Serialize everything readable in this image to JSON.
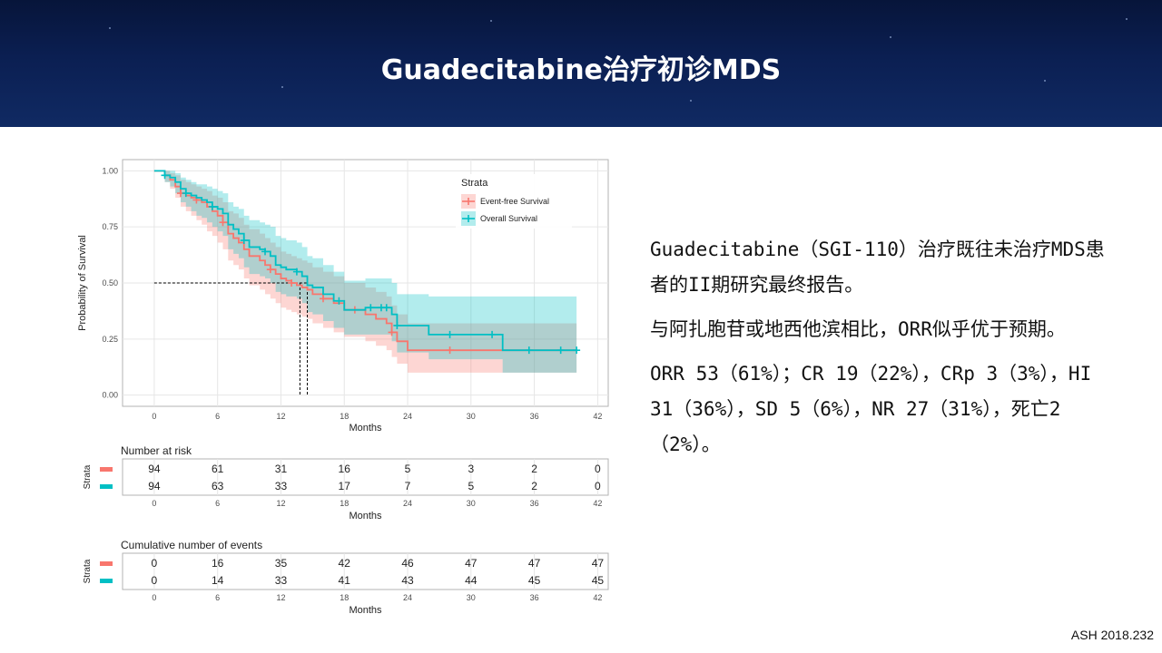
{
  "header": {
    "title": "Guadecitabine治疗初诊MDS"
  },
  "text": {
    "para1": "Guadecitabine（SGI-110）治疗既往未治疗MDS患者的II期研究最终报告。",
    "para2": "与阿扎胞苷或地西他滨相比，ORR似乎优于预期。",
    "para3": "ORR 53（61%）；CR 19（22%），CRp 3（3%），HI 31（36%），SD 5（6%），NR 27（31%），死亡2（2%）。"
  },
  "source": "ASH 2018.232",
  "colors": {
    "efs": "#f8766d",
    "os": "#00bfc4"
  },
  "chart_data": {
    "type": "line",
    "title": "",
    "xlabel": "Months",
    "ylabel": "Probability of Survival",
    "xlim": [
      -3,
      43
    ],
    "ylim": [
      -0.05,
      1.05
    ],
    "xticks": [
      0,
      6,
      12,
      18,
      24,
      30,
      36,
      42
    ],
    "yticks": [
      "0.00",
      "0.25",
      "0.50",
      "0.75",
      "1.00"
    ],
    "grid": true,
    "legend": {
      "title": "Strata",
      "position": "top-right"
    },
    "median_line": {
      "y": 0.5,
      "x": [
        13.8,
        14.5
      ]
    },
    "series": [
      {
        "name": "Event-free Survival",
        "x": [
          0,
          1,
          1.5,
          2,
          2.5,
          3,
          3.5,
          4,
          4.5,
          5,
          5.5,
          6,
          6.5,
          7,
          7.5,
          8,
          8.5,
          9,
          10,
          10.5,
          11,
          11.5,
          12,
          12.5,
          13,
          13.5,
          14,
          14.5,
          15,
          16,
          17,
          18,
          20,
          21,
          22,
          22.5,
          23,
          24,
          26,
          28,
          30,
          32,
          33,
          34,
          36,
          38,
          40
        ],
        "y": [
          1,
          0.98,
          0.96,
          0.93,
          0.9,
          0.89,
          0.88,
          0.87,
          0.86,
          0.84,
          0.82,
          0.8,
          0.77,
          0.72,
          0.7,
          0.68,
          0.65,
          0.62,
          0.6,
          0.58,
          0.56,
          0.54,
          0.52,
          0.51,
          0.5,
          0.49,
          0.48,
          0.47,
          0.45,
          0.43,
          0.41,
          0.38,
          0.36,
          0.34,
          0.32,
          0.28,
          0.24,
          0.2,
          0.2,
          0.2,
          0.2,
          0.2,
          0.2,
          0.2,
          0.2,
          0.2,
          0.2
        ],
        "lower": [
          1,
          0.95,
          0.92,
          0.88,
          0.84,
          0.82,
          0.8,
          0.78,
          0.76,
          0.73,
          0.71,
          0.68,
          0.65,
          0.6,
          0.58,
          0.56,
          0.52,
          0.49,
          0.47,
          0.45,
          0.43,
          0.41,
          0.39,
          0.38,
          0.37,
          0.36,
          0.35,
          0.34,
          0.32,
          0.3,
          0.28,
          0.26,
          0.24,
          0.22,
          0.2,
          0.17,
          0.14,
          0.1,
          0.1,
          0.1,
          0.1,
          0.1,
          0.1,
          0.1,
          0.1,
          0.1,
          0.1
        ],
        "upper": [
          1,
          1,
          0.99,
          0.98,
          0.96,
          0.95,
          0.94,
          0.93,
          0.92,
          0.91,
          0.89,
          0.88,
          0.86,
          0.82,
          0.81,
          0.79,
          0.76,
          0.74,
          0.72,
          0.7,
          0.68,
          0.66,
          0.64,
          0.63,
          0.62,
          0.61,
          0.6,
          0.59,
          0.57,
          0.55,
          0.53,
          0.5,
          0.48,
          0.46,
          0.44,
          0.4,
          0.36,
          0.32,
          0.32,
          0.32,
          0.32,
          0.32,
          0.32,
          0.32,
          0.32,
          0.32,
          0.32
        ],
        "censor_x": [
          2.5,
          4,
          6.5,
          11,
          13,
          16,
          19,
          22.5,
          28
        ]
      },
      {
        "name": "Overall Survival",
        "x": [
          0,
          1,
          1.5,
          2,
          2.5,
          3,
          3.5,
          4,
          4.5,
          5,
          5.5,
          6,
          6.5,
          7,
          7.5,
          8,
          8.5,
          9,
          10,
          10.5,
          11,
          11.5,
          12,
          12.5,
          13,
          13.5,
          14,
          14.5,
          15,
          16,
          17,
          18,
          20,
          21,
          22,
          22.5,
          23,
          24,
          26,
          28,
          30,
          32,
          33,
          34,
          36,
          38,
          40
        ],
        "y": [
          1,
          0.98,
          0.97,
          0.95,
          0.92,
          0.9,
          0.89,
          0.88,
          0.87,
          0.86,
          0.84,
          0.83,
          0.81,
          0.76,
          0.74,
          0.72,
          0.69,
          0.66,
          0.65,
          0.64,
          0.62,
          0.58,
          0.57,
          0.56,
          0.56,
          0.55,
          0.53,
          0.49,
          0.48,
          0.45,
          0.42,
          0.38,
          0.39,
          0.39,
          0.39,
          0.36,
          0.31,
          0.31,
          0.27,
          0.27,
          0.27,
          0.27,
          0.2,
          0.2,
          0.2,
          0.2,
          0.2
        ],
        "lower": [
          1,
          0.95,
          0.93,
          0.9,
          0.86,
          0.84,
          0.82,
          0.8,
          0.79,
          0.77,
          0.75,
          0.73,
          0.71,
          0.65,
          0.63,
          0.61,
          0.57,
          0.54,
          0.53,
          0.52,
          0.5,
          0.46,
          0.45,
          0.44,
          0.44,
          0.43,
          0.41,
          0.37,
          0.36,
          0.33,
          0.3,
          0.27,
          0.27,
          0.27,
          0.27,
          0.24,
          0.19,
          0.19,
          0.16,
          0.16,
          0.16,
          0.16,
          0.1,
          0.1,
          0.1,
          0.1,
          0.1
        ],
        "upper": [
          1,
          1,
          1,
          0.99,
          0.97,
          0.96,
          0.95,
          0.94,
          0.94,
          0.93,
          0.92,
          0.91,
          0.9,
          0.86,
          0.84,
          0.83,
          0.8,
          0.78,
          0.77,
          0.76,
          0.75,
          0.71,
          0.7,
          0.69,
          0.69,
          0.68,
          0.66,
          0.62,
          0.61,
          0.58,
          0.55,
          0.51,
          0.52,
          0.52,
          0.52,
          0.5,
          0.45,
          0.45,
          0.44,
          0.44,
          0.44,
          0.44,
          0.44,
          0.44,
          0.44,
          0.44,
          0.44
        ],
        "censor_x": [
          1,
          3,
          5.5,
          8.5,
          10.5,
          13.5,
          17.5,
          20.5,
          21.5,
          22,
          23,
          28,
          32,
          35.5,
          38.5,
          40
        ]
      }
    ],
    "risk_table": {
      "title": "Number at risk",
      "strata_label": "Strata",
      "xlabel": "Months",
      "efs": [
        94,
        61,
        31,
        16,
        5,
        3,
        2,
        0
      ],
      "os": [
        94,
        63,
        33,
        17,
        7,
        5,
        2,
        0
      ]
    },
    "events_table": {
      "title": "Cumulative number of events",
      "strata_label": "Strata",
      "xlabel": "Months",
      "efs": [
        0,
        16,
        35,
        42,
        46,
        47,
        47,
        47
      ],
      "os": [
        0,
        14,
        33,
        41,
        43,
        44,
        45,
        45
      ]
    }
  }
}
